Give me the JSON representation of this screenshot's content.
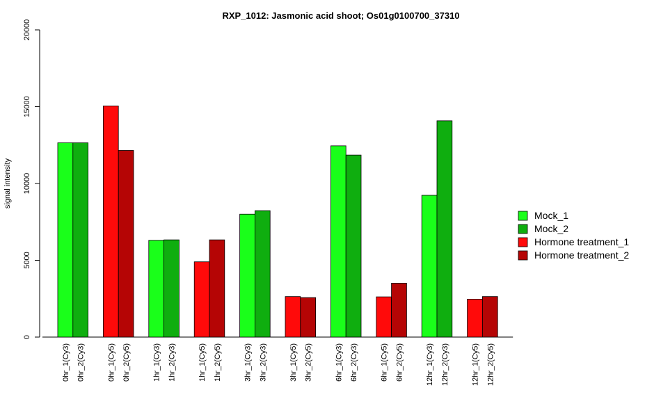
{
  "chart_data": {
    "type": "bar",
    "title": "RXP_1012: Jasmonic acid shoot; Os01g0100700_37310",
    "xlabel": "",
    "ylabel": "signal intensity",
    "ylim": [
      0,
      20000
    ],
    "yticks": [
      0,
      5000,
      10000,
      15000,
      20000
    ],
    "grid": false,
    "legend_position": "right",
    "legend": [
      {
        "name": "Mock_1",
        "color": "#1aff1a"
      },
      {
        "name": "Mock_2",
        "color": "#0fae0f"
      },
      {
        "name": "Hormone treatment_1",
        "color": "#ff0a0a"
      },
      {
        "name": "Hormone treatment_2",
        "color": "#b50505"
      }
    ],
    "bars": [
      {
        "label": "0hr_1(Cy3)",
        "value": 12650,
        "series": "Mock_1",
        "color": "#1aff1a"
      },
      {
        "label": "0hr_2(Cy3)",
        "value": 12650,
        "series": "Mock_2",
        "color": "#0fae0f"
      },
      {
        "label": "0hr_1(Cy5)",
        "value": 15050,
        "series": "Hormone treatment_1",
        "color": "#ff0a0a"
      },
      {
        "label": "0hr_2(Cy5)",
        "value": 12150,
        "series": "Hormone treatment_2",
        "color": "#b50505"
      },
      {
        "label": "1hr_1(Cy3)",
        "value": 6300,
        "series": "Mock_1",
        "color": "#1aff1a"
      },
      {
        "label": "1hr_2(Cy3)",
        "value": 6330,
        "series": "Mock_2",
        "color": "#0fae0f"
      },
      {
        "label": "1hr_1(Cy5)",
        "value": 4900,
        "series": "Hormone treatment_1",
        "color": "#ff0a0a"
      },
      {
        "label": "1hr_2(Cy5)",
        "value": 6330,
        "series": "Hormone treatment_2",
        "color": "#b50505"
      },
      {
        "label": "3hr_1(Cy3)",
        "value": 8000,
        "series": "Mock_1",
        "color": "#1aff1a"
      },
      {
        "label": "3hr_2(Cy3)",
        "value": 8230,
        "series": "Mock_2",
        "color": "#0fae0f"
      },
      {
        "label": "3hr_1(Cy5)",
        "value": 2640,
        "series": "Hormone treatment_1",
        "color": "#ff0a0a"
      },
      {
        "label": "3hr_2(Cy5)",
        "value": 2570,
        "series": "Hormone treatment_2",
        "color": "#b50505"
      },
      {
        "label": "6hr_1(Cy3)",
        "value": 12450,
        "series": "Mock_1",
        "color": "#1aff1a"
      },
      {
        "label": "6hr_2(Cy3)",
        "value": 11850,
        "series": "Mock_2",
        "color": "#0fae0f"
      },
      {
        "label": "6hr_1(Cy5)",
        "value": 2620,
        "series": "Hormone treatment_1",
        "color": "#ff0a0a"
      },
      {
        "label": "6hr_2(Cy5)",
        "value": 3510,
        "series": "Hormone treatment_2",
        "color": "#b50505"
      },
      {
        "label": "12hr_1(Cy3)",
        "value": 9230,
        "series": "Mock_1",
        "color": "#1aff1a"
      },
      {
        "label": "12hr_2(Cy3)",
        "value": 14080,
        "series": "Mock_2",
        "color": "#0fae0f"
      },
      {
        "label": "12hr_1(Cy5)",
        "value": 2470,
        "series": "Hormone treatment_1",
        "color": "#ff0a0a"
      },
      {
        "label": "12hr_2(Cy5)",
        "value": 2640,
        "series": "Hormone treatment_2",
        "color": "#b50505"
      }
    ]
  }
}
